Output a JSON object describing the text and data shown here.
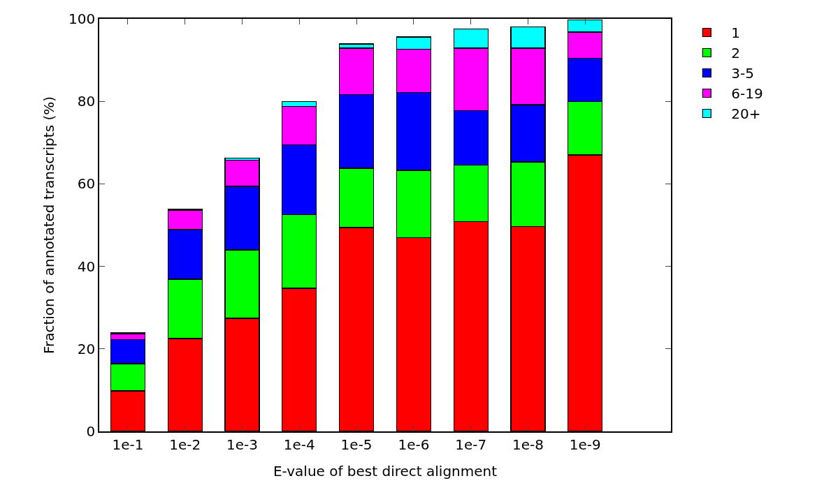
{
  "chart_data": {
    "type": "bar",
    "stacked": true,
    "xlabel": "E-value of best direct alignment",
    "ylabel": "Fraction of annotated transcripts (%)",
    "categories": [
      "1e-1",
      "1e-2",
      "1e-3",
      "1e-4",
      "1e-5",
      "1e-6",
      "1e-7",
      "1e-8",
      "1e-9",
      null
    ],
    "series": [
      {
        "name": "1",
        "color": "#ff0000",
        "values": [
          9.8,
          22.5,
          27.4,
          34.7,
          49.4,
          46.9,
          50.9,
          49.7,
          67.0,
          null
        ]
      },
      {
        "name": "2",
        "color": "#00ff00",
        "values": [
          6.6,
          14.4,
          16.6,
          17.9,
          14.4,
          16.4,
          13.6,
          15.6,
          13.0,
          null
        ]
      },
      {
        "name": "3-5",
        "color": "#0000ff",
        "values": [
          5.9,
          12.0,
          15.4,
          16.8,
          17.8,
          18.8,
          13.3,
          13.9,
          10.4,
          null
        ]
      },
      {
        "name": "6-19",
        "color": "#ff00ff",
        "values": [
          1.4,
          4.6,
          6.3,
          9.3,
          11.3,
          10.5,
          15.1,
          13.7,
          6.4,
          null
        ]
      },
      {
        "name": "20+",
        "color": "#00ffff",
        "values": [
          0.2,
          0.3,
          0.5,
          1.2,
          1.0,
          3.0,
          4.7,
          5.1,
          2.9,
          null
        ]
      }
    ],
    "ylim": [
      0,
      100
    ],
    "yticks": [
      0,
      20,
      40,
      60,
      80,
      100
    ],
    "legend": "top right"
  }
}
